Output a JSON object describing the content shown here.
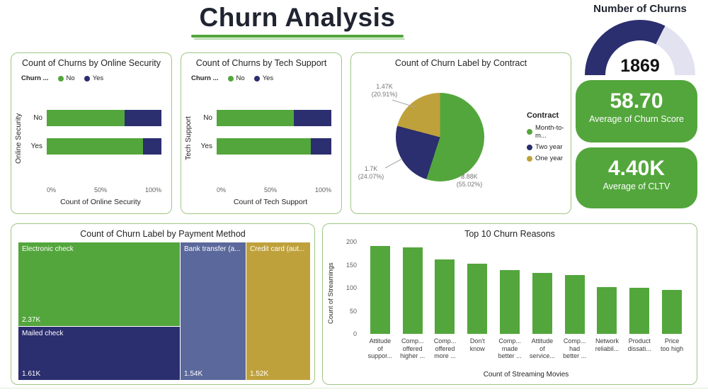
{
  "page": {
    "title": "Churn Analysis"
  },
  "colors": {
    "green": "#53a63c",
    "navy": "#2b2e6f",
    "gold": "#bfa13c",
    "blue_gray": "#5b689b",
    "gauge_track": "#e3e2f0",
    "panel_border": "#9fc684"
  },
  "gauge": {
    "title": "Number of Churns",
    "value": "1869",
    "fill_pct": 65
  },
  "cards": [
    {
      "value": "58.70",
      "label": "Average of Churn Score"
    },
    {
      "value": "4.40K",
      "label": "Average of CLTV"
    }
  ],
  "chart_data": [
    {
      "type": "bar",
      "subtype": "stacked-horizontal-100pct",
      "title": "Count of Churns by Online Security",
      "legend_title": "Churn ...",
      "categories": [
        "No",
        "Yes"
      ],
      "series": [
        {
          "name": "No",
          "color_key": "green",
          "values": [
            68,
            84
          ]
        },
        {
          "name": "Yes",
          "color_key": "navy",
          "values": [
            32,
            16
          ]
        }
      ],
      "x_ticks": [
        "0%",
        "50%",
        "100%"
      ],
      "xlabel": "Count of Online Security",
      "ylabel": "Online Security"
    },
    {
      "type": "bar",
      "subtype": "stacked-horizontal-100pct",
      "title": "Count of Churns by Tech Support",
      "legend_title": "Churn ...",
      "categories": [
        "No",
        "Yes"
      ],
      "series": [
        {
          "name": "No",
          "color_key": "green",
          "values": [
            67,
            82
          ]
        },
        {
          "name": "Yes",
          "color_key": "navy",
          "values": [
            33,
            18
          ]
        }
      ],
      "x_ticks": [
        "0%",
        "50%",
        "100%"
      ],
      "xlabel": "Count of Tech Support",
      "ylabel": "Tech Support"
    },
    {
      "type": "pie",
      "title": "Count of Churn Label by Contract",
      "legend_title": "Contract",
      "slices": [
        {
          "label": "Month-to-m...",
          "value_label": "3.88K",
          "pct_label": "(55.02%)",
          "pct": 55.02,
          "color_key": "green"
        },
        {
          "label": "Two year",
          "value_label": "1.7K",
          "pct_label": "(24.07%)",
          "pct": 24.07,
          "color_key": "navy"
        },
        {
          "label": "One year",
          "value_label": "1.47K",
          "pct_label": "(20.91%)",
          "pct": 20.91,
          "color_key": "gold"
        }
      ]
    },
    {
      "type": "treemap",
      "title": "Count of Churn Label by Payment Method",
      "tiles": [
        {
          "label": "Electronic check",
          "value": "2.37K",
          "color_key": "green"
        },
        {
          "label": "Mailed check",
          "value": "1.61K",
          "color_key": "navy"
        },
        {
          "label": "Bank transfer (a...",
          "value": "1.54K",
          "color_key": "blue_gray"
        },
        {
          "label": "Credit card (aut...",
          "value": "1.52K",
          "color_key": "gold"
        }
      ]
    },
    {
      "type": "bar",
      "subtype": "vertical",
      "title": "Top 10 Churn Reasons",
      "categories": [
        [
          "Attitude",
          "of",
          "suppor..."
        ],
        [
          "Comp...",
          "offered",
          "higher ..."
        ],
        [
          "Comp...",
          "offered",
          "more ..."
        ],
        [
          "Don't",
          "know"
        ],
        [
          "Comp...",
          "made",
          "better ..."
        ],
        [
          "Attitude",
          "of",
          "service..."
        ],
        [
          "Comp...",
          "had",
          "better ..."
        ],
        [
          "Network",
          "reliabil..."
        ],
        [
          "Product",
          "dissati..."
        ],
        [
          "Price",
          "too high"
        ]
      ],
      "values": [
        191,
        188,
        161,
        152,
        138,
        133,
        128,
        102,
        100,
        95
      ],
      "y_ticks": [
        200,
        150,
        100,
        50,
        0
      ],
      "ylim": [
        0,
        200
      ],
      "ylabel": "Count of Streamings",
      "xlabel": "Count of Streaming Movies"
    }
  ]
}
